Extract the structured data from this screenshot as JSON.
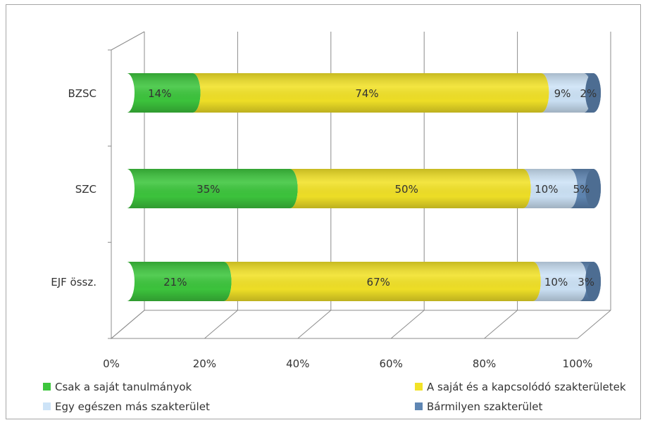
{
  "chart_data": {
    "type": "bar",
    "orientation": "horizontal",
    "stacked": "percent",
    "style": "3d-cylinder",
    "categories": [
      "BZSC",
      "SZC",
      "EJF össz."
    ],
    "series": [
      {
        "name": "Csak a saját tanulmányok",
        "values": [
          14,
          35,
          21
        ],
        "labels": [
          "14%",
          "35%",
          "21%"
        ],
        "color": "#3dc63d"
      },
      {
        "name": "A saját és a kapcsolódó szakterületek",
        "values": [
          74,
          50,
          67
        ],
        "labels": [
          "74%",
          "50%",
          "67%"
        ],
        "color": "#f2e227"
      },
      {
        "name": "Egy egészen más szakterület",
        "values": [
          9,
          10,
          10
        ],
        "labels": [
          "9%",
          "10%",
          "10%"
        ],
        "color": "#cde3f7"
      },
      {
        "name": "Bármilyen szakterület",
        "values": [
          2,
          5,
          3
        ],
        "labels": [
          "2%",
          "5%",
          "3%"
        ],
        "color": "#5f86b3"
      }
    ],
    "xticks": [
      "0%",
      "20%",
      "40%",
      "60%",
      "80%",
      "100%"
    ],
    "xlim": [
      0,
      100
    ],
    "grid": true,
    "legend_position": "bottom"
  }
}
